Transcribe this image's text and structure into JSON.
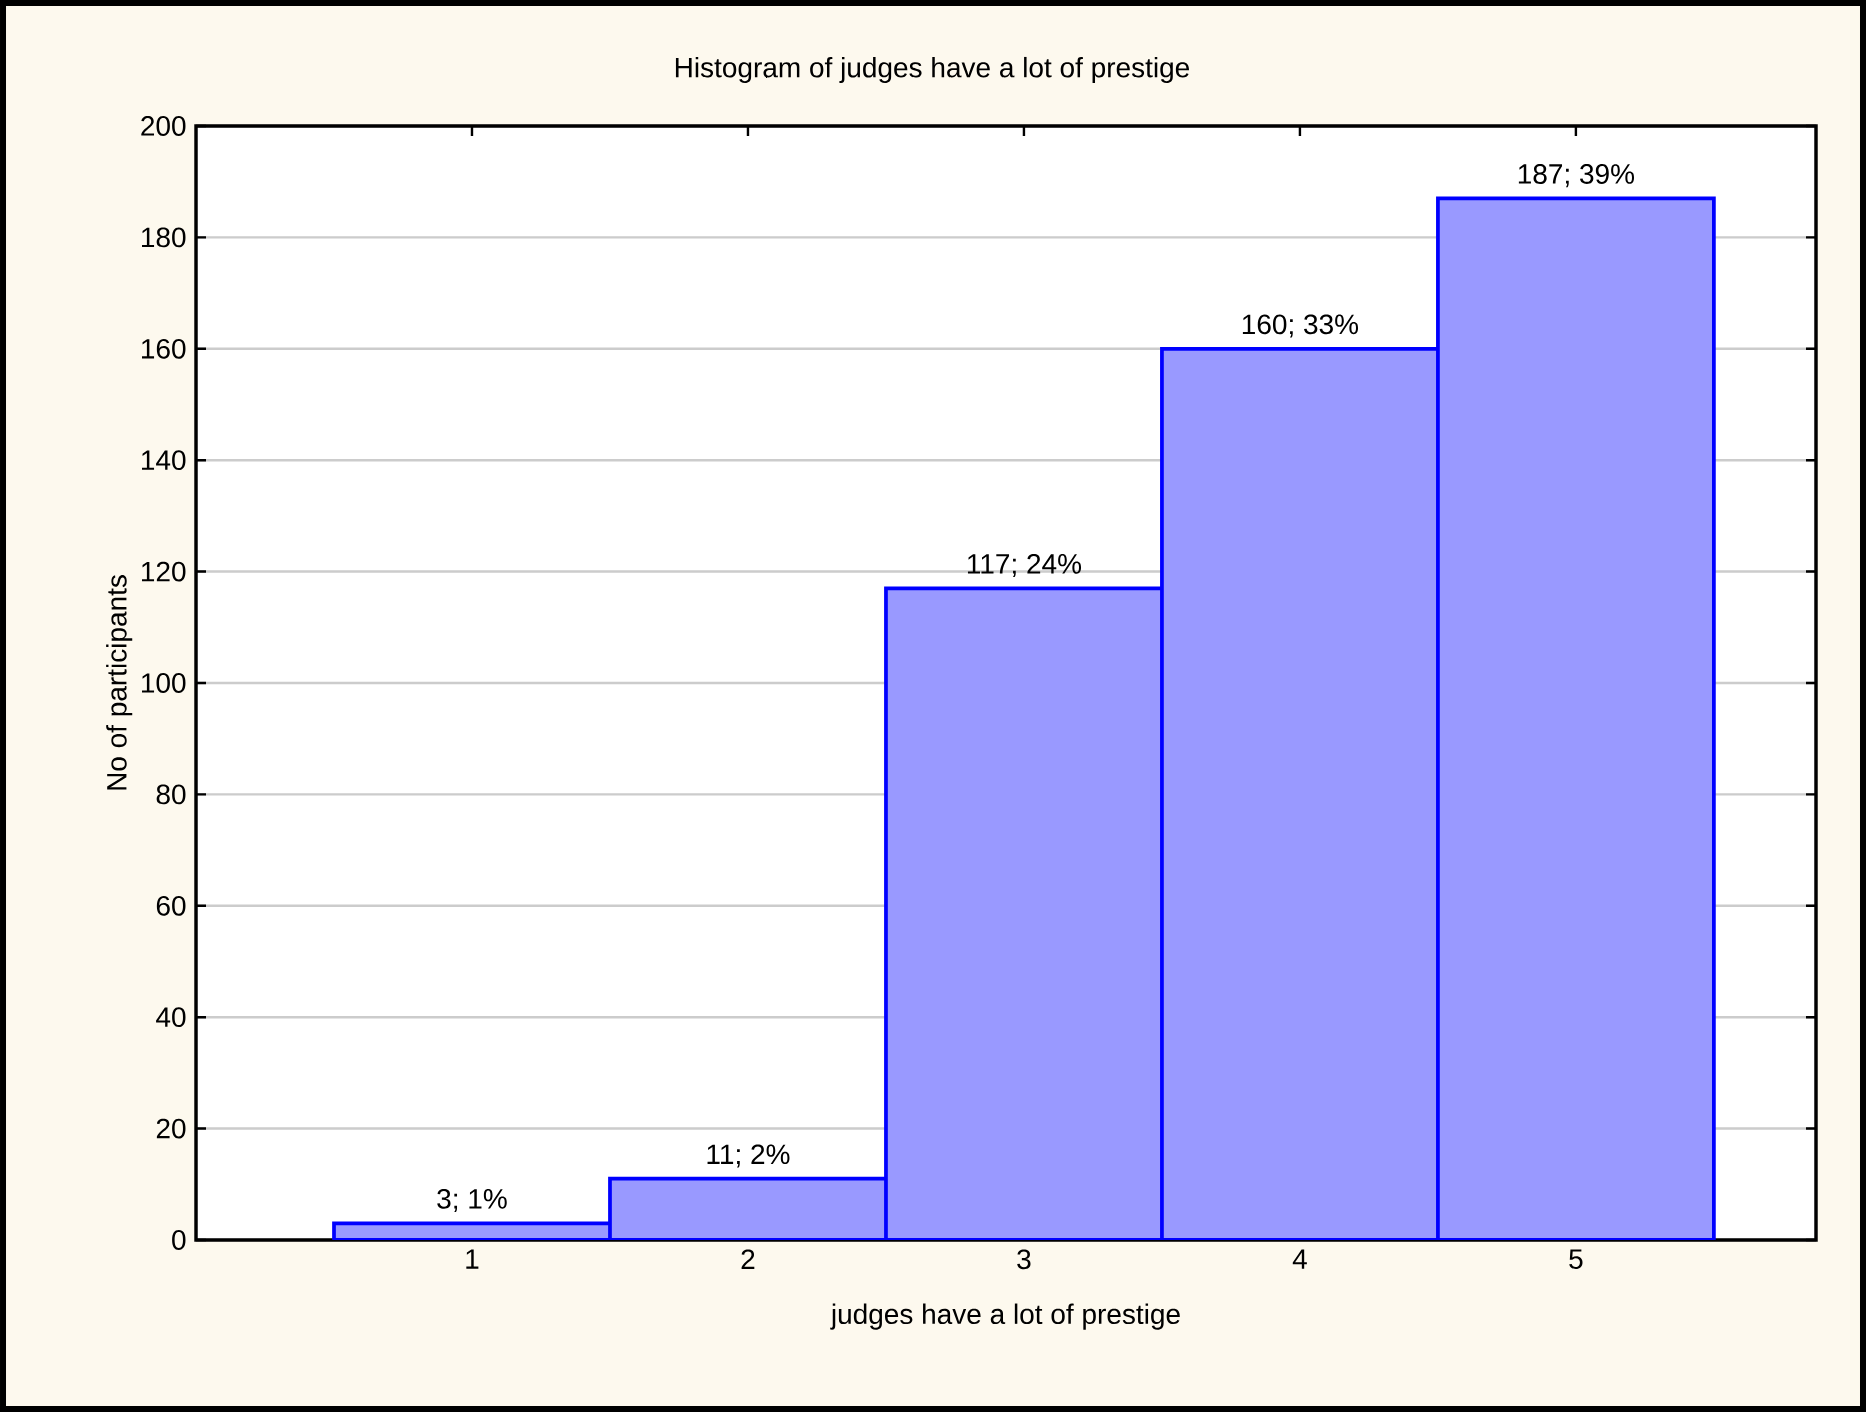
{
  "chart_data": {
    "type": "bar",
    "title": "Histogram of judges have a lot of prestige",
    "xlabel": "judges have a lot of prestige",
    "ylabel": "No of participants",
    "categories": [
      "1",
      "2",
      "3",
      "4",
      "5"
    ],
    "values": [
      3,
      11,
      117,
      160,
      187
    ],
    "value_labels": [
      "3; 1%",
      "11; 2%",
      "117; 24%",
      "160; 33%",
      "187; 39%"
    ],
    "color": "#9999ff",
    "ylim": [
      0,
      200
    ],
    "yticks": [
      0,
      20,
      40,
      60,
      80,
      100,
      120,
      140,
      160,
      180,
      200
    ],
    "grid": "y"
  }
}
